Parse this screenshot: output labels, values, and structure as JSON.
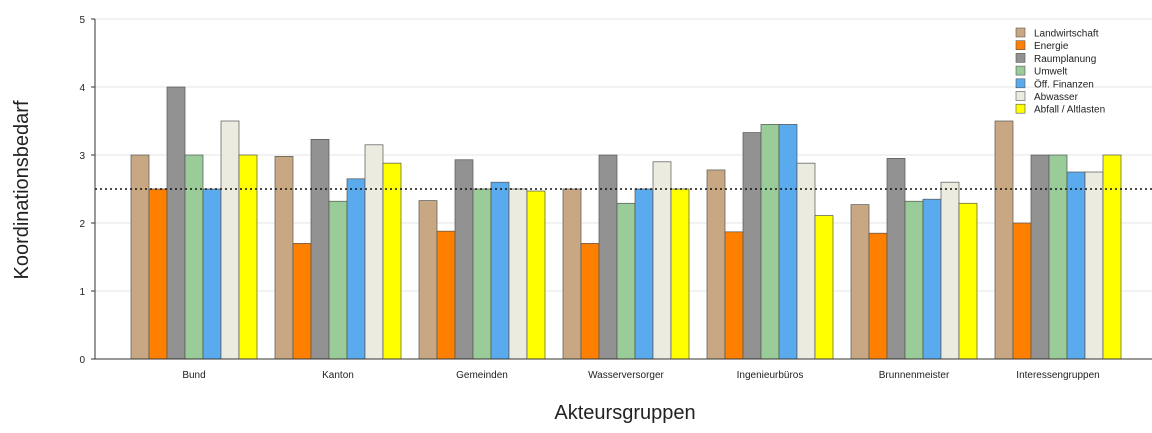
{
  "chart_data": {
    "type": "bar",
    "title": "",
    "xlabel": "Akteursgruppen",
    "ylabel": "Koordinationsbedarf",
    "ylim": [
      0,
      5
    ],
    "yticks": [
      "0",
      "1",
      "2",
      "3",
      "4",
      "5"
    ],
    "grid": true,
    "legend_position": "top-right",
    "reference_line": {
      "value": 2.5,
      "style": "dotted"
    },
    "categories": [
      "Bund",
      "Kanton",
      "Gemeinden",
      "Wasserversorger",
      "Ingenieurbüros",
      "Brunnenmeister",
      "Interessengruppen"
    ],
    "series": [
      {
        "name": "Landwirtschaft",
        "color": "#C8A882",
        "values": [
          3.0,
          2.98,
          2.33,
          2.5,
          2.78,
          2.27,
          3.5
        ]
      },
      {
        "name": "Energie",
        "color": "#FF7F00",
        "values": [
          2.5,
          1.7,
          1.88,
          1.7,
          1.87,
          1.85,
          2.0
        ]
      },
      {
        "name": "Raumplanung",
        "color": "#929292",
        "values": [
          4.0,
          3.23,
          2.93,
          3.0,
          3.33,
          2.95,
          3.0
        ]
      },
      {
        "name": "Umwelt",
        "color": "#99CC99",
        "values": [
          3.0,
          2.32,
          2.5,
          2.29,
          3.45,
          2.32,
          3.0
        ]
      },
      {
        "name": "Öff. Finanzen",
        "color": "#5AAAEE",
        "values": [
          2.5,
          2.65,
          2.6,
          2.5,
          3.45,
          2.35,
          2.75
        ]
      },
      {
        "name": "Abwasser",
        "color": "#EBEBE0",
        "values": [
          3.5,
          3.15,
          2.5,
          2.9,
          2.88,
          2.6,
          2.75
        ]
      },
      {
        "name": "Abfall / Altlasten",
        "color": "#FFFF00",
        "values": [
          3.0,
          2.88,
          2.47,
          2.5,
          2.11,
          2.29,
          3.0
        ]
      }
    ]
  }
}
